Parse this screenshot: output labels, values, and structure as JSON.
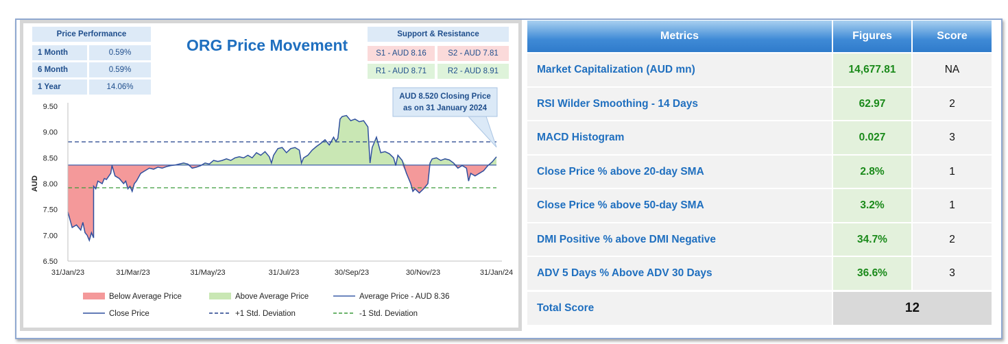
{
  "price_performance": {
    "title": "Price Performance",
    "rows": [
      {
        "label": "1 Month",
        "value": "0.59%"
      },
      {
        "label": "6 Month",
        "value": "0.59%"
      },
      {
        "label": "1 Year",
        "value": "14.06%"
      }
    ]
  },
  "support_resistance": {
    "title": "Support & Resistance",
    "s1": "S1 - AUD 8.16",
    "s2": "S2 - AUD 7.81",
    "r1": "R1 - AUD 8.71",
    "r2": "R2 - AUD 8.91",
    "support_color": "#fbdada",
    "resistance_color": "#def3da"
  },
  "callout": {
    "line1": "AUD 8.520 Closing Price",
    "line2": "as on 31 January 2024"
  },
  "chart_data": {
    "type": "area",
    "title": "ORG Price Movement",
    "ylabel": "AUD",
    "ylim": [
      6.5,
      9.5
    ],
    "yticks": [
      "9.50",
      "9.00",
      "8.50",
      "8.00",
      "7.50",
      "7.00",
      "6.50"
    ],
    "xticks": [
      "31/Jan/23",
      "31/Mar/23",
      "31/May/23",
      "31/Jul/23",
      "30/Sep/23",
      "30/Nov/23",
      "31/Jan/24"
    ],
    "average": 8.36,
    "plus_1_std": 8.81,
    "minus_1_std": 7.92,
    "close_series": [
      [
        0,
        7.45
      ],
      [
        0.01,
        7.15
      ],
      [
        0.02,
        7.2
      ],
      [
        0.03,
        7.1
      ],
      [
        0.035,
        7.25
      ],
      [
        0.04,
        7.05
      ],
      [
        0.045,
        7.0
      ],
      [
        0.05,
        6.9
      ],
      [
        0.055,
        7.05
      ],
      [
        0.06,
        6.95
      ],
      [
        0.06,
        7.95
      ],
      [
        0.065,
        7.9
      ],
      [
        0.07,
        8.05
      ],
      [
        0.08,
        8.0
      ],
      [
        0.085,
        8.1
      ],
      [
        0.09,
        8.08
      ],
      [
        0.1,
        8.2
      ],
      [
        0.103,
        8.35
      ],
      [
        0.11,
        8.15
      ],
      [
        0.12,
        8.1
      ],
      [
        0.13,
        8.0
      ],
      [
        0.135,
        8.05
      ],
      [
        0.14,
        7.9
      ],
      [
        0.145,
        7.95
      ],
      [
        0.15,
        7.85
      ],
      [
        0.155,
        8.0
      ],
      [
        0.16,
        8.05
      ],
      [
        0.17,
        8.2
      ],
      [
        0.18,
        8.25
      ],
      [
        0.19,
        8.3
      ],
      [
        0.2,
        8.28
      ],
      [
        0.21,
        8.32
      ],
      [
        0.22,
        8.3
      ],
      [
        0.23,
        8.33
      ],
      [
        0.24,
        8.35
      ],
      [
        0.25,
        8.36
      ],
      [
        0.26,
        8.38
      ],
      [
        0.27,
        8.4
      ],
      [
        0.28,
        8.38
      ],
      [
        0.29,
        8.3
      ],
      [
        0.3,
        8.32
      ],
      [
        0.31,
        8.35
      ],
      [
        0.32,
        8.4
      ],
      [
        0.33,
        8.38
      ],
      [
        0.34,
        8.45
      ],
      [
        0.35,
        8.43
      ],
      [
        0.36,
        8.45
      ],
      [
        0.37,
        8.48
      ],
      [
        0.38,
        8.45
      ],
      [
        0.39,
        8.5
      ],
      [
        0.4,
        8.52
      ],
      [
        0.41,
        8.5
      ],
      [
        0.42,
        8.55
      ],
      [
        0.43,
        8.5
      ],
      [
        0.44,
        8.6
      ],
      [
        0.45,
        8.55
      ],
      [
        0.46,
        8.62
      ],
      [
        0.47,
        8.52
      ],
      [
        0.475,
        8.4
      ],
      [
        0.48,
        8.55
      ],
      [
        0.49,
        8.68
      ],
      [
        0.5,
        8.7
      ],
      [
        0.51,
        8.6
      ],
      [
        0.52,
        8.68
      ],
      [
        0.53,
        8.7
      ],
      [
        0.54,
        8.65
      ],
      [
        0.545,
        8.4
      ],
      [
        0.55,
        8.5
      ],
      [
        0.56,
        8.55
      ],
      [
        0.57,
        8.65
      ],
      [
        0.58,
        8.72
      ],
      [
        0.59,
        8.78
      ],
      [
        0.6,
        8.85
      ],
      [
        0.61,
        8.75
      ],
      [
        0.62,
        8.9
      ],
      [
        0.625,
        8.82
      ],
      [
        0.63,
        8.88
      ],
      [
        0.635,
        9.25
      ],
      [
        0.64,
        9.3
      ],
      [
        0.65,
        9.32
      ],
      [
        0.66,
        9.22
      ],
      [
        0.67,
        9.25
      ],
      [
        0.68,
        9.2
      ],
      [
        0.69,
        9.22
      ],
      [
        0.7,
        9.1
      ],
      [
        0.705,
        8.4
      ],
      [
        0.71,
        8.7
      ],
      [
        0.72,
        8.9
      ],
      [
        0.73,
        8.6
      ],
      [
        0.74,
        8.62
      ],
      [
        0.75,
        8.58
      ],
      [
        0.76,
        8.5
      ],
      [
        0.765,
        8.35
      ],
      [
        0.77,
        8.55
      ],
      [
        0.78,
        8.45
      ],
      [
        0.79,
        8.2
      ],
      [
        0.8,
        8.0
      ],
      [
        0.805,
        7.85
      ],
      [
        0.81,
        7.9
      ],
      [
        0.82,
        7.82
      ],
      [
        0.83,
        7.9
      ],
      [
        0.84,
        8.0
      ],
      [
        0.845,
        8.4
      ],
      [
        0.85,
        8.48
      ],
      [
        0.86,
        8.5
      ],
      [
        0.87,
        8.45
      ],
      [
        0.88,
        8.48
      ],
      [
        0.89,
        8.46
      ],
      [
        0.9,
        8.4
      ],
      [
        0.91,
        8.3
      ],
      [
        0.92,
        8.35
      ],
      [
        0.93,
        8.3
      ],
      [
        0.935,
        8.05
      ],
      [
        0.94,
        8.2
      ],
      [
        0.95,
        8.15
      ],
      [
        0.96,
        8.2
      ],
      [
        0.97,
        8.25
      ],
      [
        0.98,
        8.35
      ],
      [
        0.99,
        8.42
      ],
      [
        1.0,
        8.52
      ]
    ],
    "legend": [
      {
        "name": "Below Average Price",
        "kind": "fill",
        "color": "#f4999a"
      },
      {
        "name": "Above Average Price",
        "kind": "fill",
        "color": "#c9e7b4"
      },
      {
        "name": "Average Price - AUD 8.36",
        "kind": "line",
        "color": "#3b5fa8"
      },
      {
        "name": "Close Price",
        "kind": "line",
        "color": "#2f4f9e"
      },
      {
        "name": "+1 Std. Deviation",
        "kind": "dash",
        "color": "#1f3d8a"
      },
      {
        "name": "-1 Std. Deviation",
        "kind": "dash",
        "color": "#3a9a3a"
      }
    ],
    "legend_placement": "bottom",
    "grid": false
  },
  "metrics": {
    "headers": {
      "metric": "Metrics",
      "figure": "Figures",
      "score": "Score"
    },
    "rows": [
      {
        "name": "Market Capitalization (AUD mn)",
        "figure": "14,677.81",
        "score": "NA"
      },
      {
        "name": "RSI Wilder Smoothing - 14 Days",
        "figure": "62.97",
        "score": "2"
      },
      {
        "name": "MACD Histogram",
        "figure": "0.027",
        "score": "3"
      },
      {
        "name": "Close Price % above 20-day SMA",
        "figure": "2.8%",
        "score": "1"
      },
      {
        "name": "Close Price % above 50-day SMA",
        "figure": "3.2%",
        "score": "1"
      },
      {
        "name": "DMI Positive % above DMI Negative",
        "figure": "34.7%",
        "score": "2"
      },
      {
        "name": "ADV 5 Days % Above ADV 30 Days",
        "figure": "36.6%",
        "score": "3"
      }
    ],
    "total_label": "Total Score",
    "total_value": "12"
  }
}
